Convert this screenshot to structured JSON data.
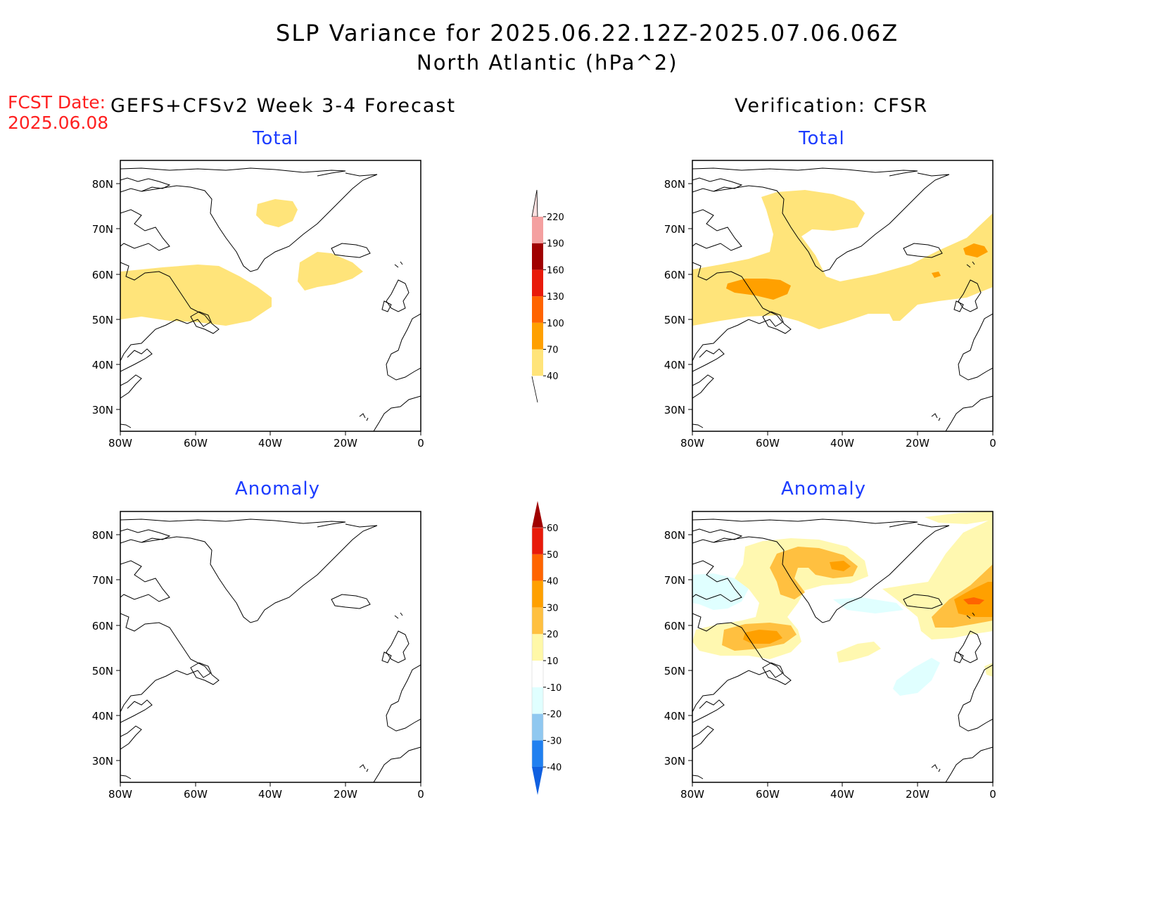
{
  "title": "SLP Variance for 2025.06.22.12Z-2025.07.06.06Z",
  "subtitle": "North Atlantic (hPa^2)",
  "fcst_label": "FCST Date:",
  "fcst_date": "2025.06.08",
  "left_header": "GEFS+CFSv2 Week 3-4 Forecast",
  "right_header": "Verification: CFSR",
  "panels": [
    {
      "id": "fcst-total",
      "title": "Total"
    },
    {
      "id": "verif-total",
      "title": "Total"
    },
    {
      "id": "fcst-anomaly",
      "title": "Anomaly"
    },
    {
      "id": "verif-anomaly",
      "title": "Anomaly"
    }
  ],
  "axes": {
    "lon_ticks": [
      "80W",
      "60W",
      "40W",
      "20W",
      "0"
    ],
    "lat_ticks": [
      "80N",
      "70N",
      "60N",
      "50N",
      "40N",
      "30N"
    ],
    "lon_range": [
      -80,
      0
    ],
    "lat_range": [
      25,
      85
    ]
  },
  "colorbars": {
    "total": {
      "labels": [
        "40",
        "70",
        "100",
        "130",
        "160",
        "190",
        "220"
      ],
      "colors": [
        "#ffe47a",
        "#ffa000",
        "#ff6400",
        "#e81a0a",
        "#a00000",
        "#f4a0a0",
        "#fde0e0"
      ]
    },
    "anomaly": {
      "labels": [
        "-40",
        "-30",
        "-20",
        "-10",
        "10",
        "20",
        "30",
        "40",
        "50",
        "60"
      ],
      "colors": [
        "#1060e0",
        "#2080f0",
        "#90c8f0",
        "#e0ffff",
        "#ffffff",
        "#fff8a8",
        "#ffc040",
        "#ffa000",
        "#ff6400",
        "#e81a0a",
        "#a00000"
      ]
    }
  },
  "colors": {
    "c40": "#ffe47a",
    "c70": "#ffa000",
    "a10": "#fff8b0",
    "a20": "#ffc040",
    "a30": "#ffa000",
    "a40": "#ff6400",
    "neg10": "#e0ffff"
  }
}
